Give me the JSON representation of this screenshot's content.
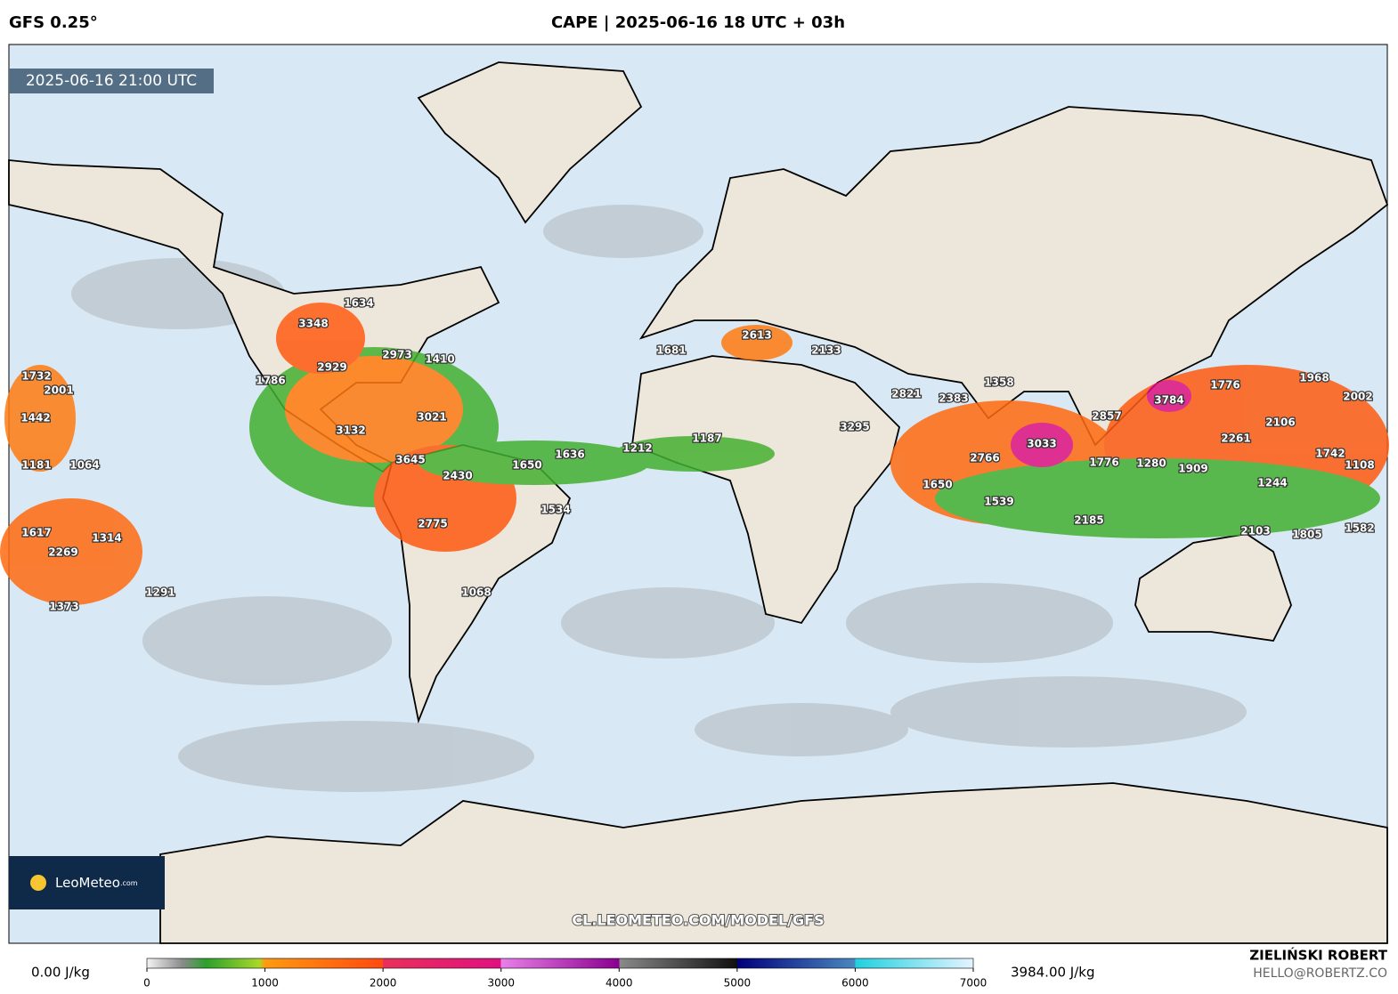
{
  "header": {
    "left": "GFS 0.25°",
    "title": "CAPE | 2025-06-16 18 UTC + 03h"
  },
  "valid_time": "2025-06-16 21:00 UTC",
  "map_labels": [
    1634,
    3348,
    2929,
    2973,
    1410,
    1786,
    3021,
    3132,
    3645,
    2430,
    1650,
    1636,
    1534,
    2775,
    1068,
    1732,
    2001,
    1442,
    1181,
    1064,
    1617,
    1314,
    2269,
    1291,
    1373,
    1681,
    2613,
    2133,
    2821,
    2383,
    1358,
    3295,
    1212,
    1187,
    2857,
    3784,
    1776,
    1968,
    2002,
    2106,
    2261,
    1742,
    1108,
    3033,
    2766,
    1776,
    1280,
    1909,
    1650,
    1539,
    2185,
    1244,
    2103,
    1805,
    1582
  ],
  "logo": {
    "name": "LeoMeteo",
    "suffix": ".com"
  },
  "watermark": "CL.LEOMETEO.COM/MODEL/GFS",
  "colorbar": {
    "min_label": "0.00 J/kg",
    "max_label": "3984.00 J/kg",
    "lim": [
      0,
      7000
    ],
    "ticks": [
      0,
      1000,
      2000,
      3000,
      4000,
      5000,
      6000,
      7000
    ],
    "stops": [
      [
        0,
        "#f4f4f4"
      ],
      [
        300,
        "#8a8a8a"
      ],
      [
        500,
        "#2ca02c"
      ],
      [
        950,
        "#a8d82a"
      ],
      [
        1000,
        "#ff9a10"
      ],
      [
        2000,
        "#ff4a10"
      ],
      [
        2000,
        "#e8305a"
      ],
      [
        3000,
        "#e01080"
      ],
      [
        3000,
        "#e880e8"
      ],
      [
        4000,
        "#8a0090"
      ],
      [
        4000,
        "#8a8a8a"
      ],
      [
        5000,
        "#101010"
      ],
      [
        5000,
        "#00007a"
      ],
      [
        6000,
        "#4a88c0"
      ],
      [
        6000,
        "#20d0e0"
      ],
      [
        7000,
        "#e4f4ff"
      ]
    ]
  },
  "footer": {
    "author": "ZIELIŃSKI ROBERT",
    "email": "HELLO@ROBERTZ.CO"
  }
}
